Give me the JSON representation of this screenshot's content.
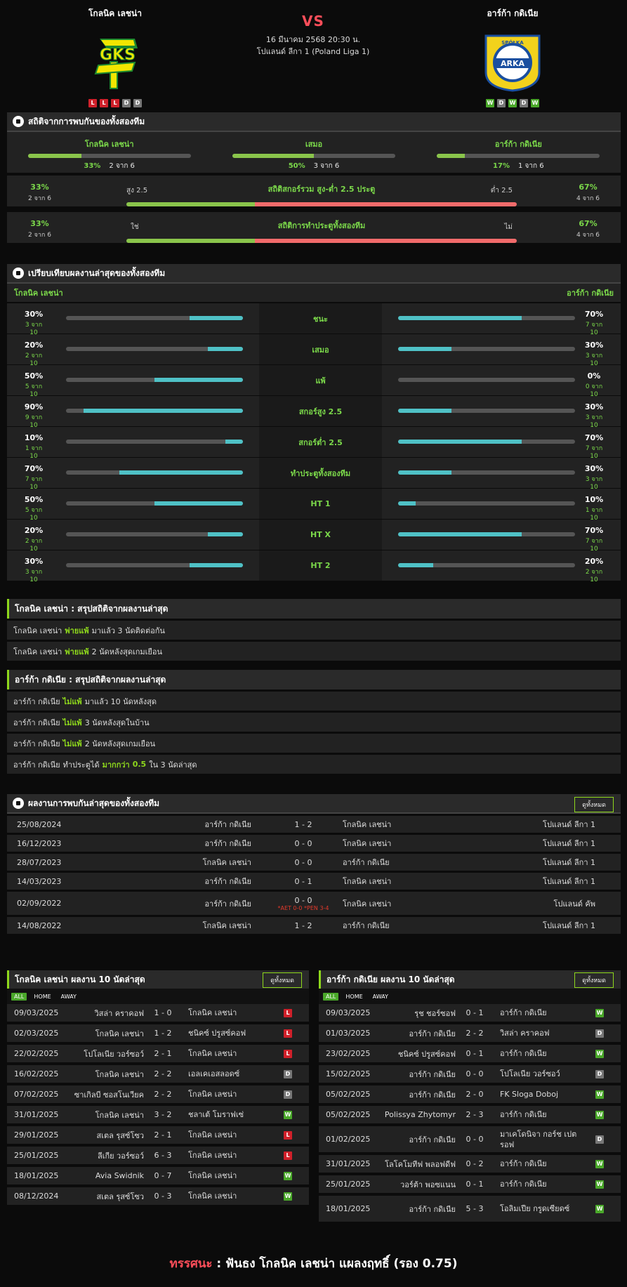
{
  "match": {
    "home": {
      "name": "โกลนิค เลชน่า",
      "form": [
        "L",
        "L",
        "L",
        "D",
        "D"
      ]
    },
    "away": {
      "name": "อาร์ก้า กดิเนีย",
      "form": [
        "W",
        "D",
        "W",
        "D",
        "W"
      ]
    },
    "vs": "VS",
    "datetime": "16 มีนาคม 2568 20:30 น.",
    "league": "โปแลนด์ ลีกา 1 (Poland Liga 1)"
  },
  "colors": {
    "accent": "#8ed81c",
    "red": "#ff4e5a",
    "bar_cyan": "#4fc1c6",
    "bar_green": "#8ac54b",
    "bar_red": "#f26b6b"
  },
  "h2h_stats": {
    "title": "สถิติจากการพบกันของทั้งสองทีม",
    "cols": [
      {
        "label": "โกลนิค เลชน่า",
        "pct": "33%",
        "count": "2 จาก 6",
        "fill": 33
      },
      {
        "label": "เสมอ",
        "pct": "50%",
        "count": "3 จาก 6",
        "fill": 50
      },
      {
        "label": "อาร์ก้า กดิเนีย",
        "pct": "17%",
        "count": "1 จาก 6",
        "fill": 17
      }
    ],
    "ou": {
      "title": "สถิติสกอร์รวม สูง-ต่ำ 2.5 ประตู",
      "left_label": "สูง 2.5",
      "right_label": "ต่ำ 2.5",
      "left_pct": "33%",
      "left_count": "2 จาก 6",
      "right_pct": "67%",
      "right_count": "4 จาก 6",
      "fill": 33
    },
    "btts": {
      "title": "สถิติการทำประตูทั้งสองทีม",
      "left_label": "ใช่",
      "right_label": "ไม่",
      "left_pct": "33%",
      "left_count": "2 จาก 6",
      "right_pct": "67%",
      "right_count": "4 จาก 6",
      "fill": 33
    }
  },
  "compare": {
    "title": "เปรียบเทียบผลงานล่าสุดของทั้งสองทีม",
    "home": "โกลนิค เลชน่า",
    "away": "อาร์ก้า กดิเนีย",
    "rows": [
      {
        "label": "ชนะ",
        "lp": "30%",
        "ls": "3 จาก 10",
        "lf": 30,
        "rp": "70%",
        "rs": "7 จาก 10",
        "rf": 70
      },
      {
        "label": "เสมอ",
        "lp": "20%",
        "ls": "2 จาก 10",
        "lf": 20,
        "rp": "30%",
        "rs": "3 จาก 10",
        "rf": 30
      },
      {
        "label": "แพ้",
        "lp": "50%",
        "ls": "5 จาก 10",
        "lf": 50,
        "rp": "0%",
        "rs": "0 จาก 10",
        "rf": 0
      },
      {
        "label": "สกอร์สูง 2.5",
        "lp": "90%",
        "ls": "9 จาก 10",
        "lf": 90,
        "rp": "30%",
        "rs": "3 จาก 10",
        "rf": 30
      },
      {
        "label": "สกอร์ต่ำ 2.5",
        "lp": "10%",
        "ls": "1 จาก 10",
        "lf": 10,
        "rp": "70%",
        "rs": "7 จาก 10",
        "rf": 70
      },
      {
        "label": "ทำประตูทั้งสองทีม",
        "lp": "70%",
        "ls": "7 จาก 10",
        "lf": 70,
        "rp": "30%",
        "rs": "3 จาก 10",
        "rf": 30
      },
      {
        "label": "HT 1",
        "lp": "50%",
        "ls": "5 จาก 10",
        "lf": 50,
        "rp": "10%",
        "rs": "1 จาก 10",
        "rf": 10
      },
      {
        "label": "HT X",
        "lp": "20%",
        "ls": "2 จาก 10",
        "lf": 20,
        "rp": "70%",
        "rs": "7 จาก 10",
        "rf": 70
      },
      {
        "label": "HT 2",
        "lp": "30%",
        "ls": "3 จาก 10",
        "lf": 30,
        "rp": "20%",
        "rs": "2 จาก 10",
        "rf": 20
      }
    ]
  },
  "summary_home": {
    "title": "โกลนิค เลชน่า : สรุปสถิติจากผลงานล่าสุด",
    "rows": [
      {
        "team": "โกลนิค เลชน่า",
        "hl": "พ่ายแพ้",
        "rest": "มาแล้ว 3 นัดติดต่อกัน"
      },
      {
        "team": "โกลนิค เลชน่า",
        "hl": "พ่ายแพ้",
        "rest": "2  นัดหลังสุดเกมเยือน"
      }
    ]
  },
  "summary_away": {
    "title": "อาร์ก้า กดิเนีย : สรุปสถิติจากผลงานล่าสุด",
    "rows": [
      {
        "team": "อาร์ก้า กดิเนีย",
        "hl": "ไม่แพ้",
        "rest": "มาแล้ว 10 นัดหลังสุด"
      },
      {
        "team": "อาร์ก้า กดิเนีย",
        "hl": "ไม่แพ้",
        "rest": "3  นัดหลังสุดในบ้าน"
      },
      {
        "team": "อาร์ก้า กดิเนีย",
        "hl": "ไม่แพ้",
        "rest": "2  นัดหลังสุดเกมเยือน"
      },
      {
        "team": "อาร์ก้า กดิเนีย",
        "hl": "",
        "rest": "ทำประตูได้",
        "hl2": "มากกว่า",
        "num": "0.5",
        "tail": "ใน 3 นัดล่าสุด"
      }
    ]
  },
  "h2h_results": {
    "title": "ผลงานการพบกันล่าสุดของทั้งสองทีม",
    "btn": "ดูทั้งหมด",
    "rows": [
      {
        "date": "25/08/2024",
        "home": "อาร์ก้า กดิเนีย",
        "score": "1 - 2",
        "away": "โกลนิค เลชน่า",
        "comp": "โปแลนด์ ลีกา 1"
      },
      {
        "date": "16/12/2023",
        "home": "อาร์ก้า กดิเนีย",
        "score": "0 - 0",
        "away": "โกลนิค เลชน่า",
        "comp": "โปแลนด์ ลีกา 1"
      },
      {
        "date": "28/07/2023",
        "home": "โกลนิค เลชน่า",
        "score": "0 - 0",
        "away": "อาร์ก้า กดิเนีย",
        "comp": "โปแลนด์ ลีกา 1"
      },
      {
        "date": "14/03/2023",
        "home": "อาร์ก้า กดิเนีย",
        "score": "0 - 1",
        "away": "โกลนิค เลชน่า",
        "comp": "โปแลนด์ ลีกา 1"
      },
      {
        "date": "02/09/2022",
        "home": "อาร์ก้า กดิเนีย",
        "score": "0 - 0",
        "note": "*AET 0-0 *PEN 3-4",
        "away": "โกลนิค เลชน่า",
        "comp": "โปแลนด์ คัพ"
      },
      {
        "date": "14/08/2022",
        "home": "โกลนิค เลชน่า",
        "score": "1 - 2",
        "away": "อาร์ก้า กดิเนีย",
        "comp": "โปแลนด์ ลีกา 1"
      }
    ]
  },
  "last10_home": {
    "title": "โกลนิค เลชน่า ผลงาน 10 นัดล่าสุด",
    "btn": "ดูทั้งหมด",
    "tabs": [
      "ALL",
      "HOME",
      "AWAY"
    ],
    "rows": [
      {
        "date": "09/03/2025",
        "home": "วิสล่า คราคอฟ",
        "score": "1 - 0",
        "away": "โกลนิค เลชน่า",
        "r": "L"
      },
      {
        "date": "02/03/2025",
        "home": "โกลนิค เลชน่า",
        "score": "1 - 2",
        "away": "ชนิคซ์ ปรูสซ์คอฟ",
        "r": "L"
      },
      {
        "date": "22/02/2025",
        "home": "โปโลเนีย วอร์ซอว์",
        "score": "2 - 1",
        "away": "โกลนิค เลชน่า",
        "r": "L"
      },
      {
        "date": "16/02/2025",
        "home": "โกลนิค เลชน่า",
        "score": "2 - 2",
        "away": "เอลเคเอสลอดซ์",
        "r": "D"
      },
      {
        "date": "07/02/2025",
        "home": "ซาเกิลบี ซอสโนเวียค",
        "score": "2 - 2",
        "away": "โกลนิค เลชน่า",
        "r": "D"
      },
      {
        "date": "31/01/2025",
        "home": "โกลนิค เลชน่า",
        "score": "3 - 2",
        "away": "ชลาเต้ โมราฟเซ่",
        "r": "W"
      },
      {
        "date": "29/01/2025",
        "home": "สเตล รุสซ์โซว",
        "score": "2 - 1",
        "away": "โกลนิค เลชน่า",
        "r": "L"
      },
      {
        "date": "25/01/2025",
        "home": "ลีเกีย วอร์ซอว์",
        "score": "6 - 3",
        "away": "โกลนิค เลชน่า",
        "r": "L"
      },
      {
        "date": "18/01/2025",
        "home": "Avia Swidnik",
        "score": "0 - 7",
        "away": "โกลนิค เลชน่า",
        "r": "W"
      },
      {
        "date": "08/12/2024",
        "home": "สเตล รุสซ์โซว",
        "score": "0 - 3",
        "away": "โกลนิค เลชน่า",
        "r": "W"
      }
    ]
  },
  "last10_away": {
    "title": "อาร์ก้า กดิเนีย ผลงาน 10 นัดล่าสุด",
    "btn": "ดูทั้งหมด",
    "tabs": [
      "ALL",
      "HOME",
      "AWAY"
    ],
    "rows": [
      {
        "date": "09/03/2025",
        "home": "รุช ชอร์ซอฟ",
        "score": "0 - 1",
        "away": "อาร์ก้า กดิเนีย",
        "r": "W"
      },
      {
        "date": "01/03/2025",
        "home": "อาร์ก้า กดิเนีย",
        "score": "2 - 2",
        "away": "วิสล่า คราคอฟ",
        "r": "D"
      },
      {
        "date": "23/02/2025",
        "home": "ชนิคซ์ ปรูสซ์คอฟ",
        "score": "0 - 1",
        "away": "อาร์ก้า กดิเนีย",
        "r": "W"
      },
      {
        "date": "15/02/2025",
        "home": "อาร์ก้า กดิเนีย",
        "score": "0 - 0",
        "away": "โปโลเนีย วอร์ซอว์",
        "r": "D"
      },
      {
        "date": "05/02/2025",
        "home": "อาร์ก้า กดิเนีย",
        "score": "2 - 0",
        "away": "FK Sloga Doboj",
        "r": "W"
      },
      {
        "date": "05/02/2025",
        "home": "Polissya Zhytomyr",
        "score": "2 - 3",
        "away": "อาร์ก้า กดิเนีย",
        "r": "W"
      },
      {
        "date": "01/02/2025",
        "home": "อาร์ก้า กดิเนีย",
        "score": "0 - 0",
        "away": "มาเคโดนิจา กอร์ช เปตรอฟ",
        "r": "D"
      },
      {
        "date": "31/01/2025",
        "home": "โลโคโมทีฟ พลอฟดีฟ",
        "score": "0 - 2",
        "away": "อาร์ก้า กดิเนีย",
        "r": "W"
      },
      {
        "date": "25/01/2025",
        "home": "วอร์ต้า พอซแนน",
        "score": "0 - 1",
        "away": "อาร์ก้า กดิเนีย",
        "r": "W"
      },
      {
        "date": "18/01/2025",
        "home": "อาร์ก้า กดิเนีย",
        "score": "5 - 3",
        "away": "โอลิมเปีย กรูดเซียดซ์",
        "r": "W"
      }
    ]
  },
  "verdict": {
    "label": "ทรรศนะ",
    "sep": ":",
    "text": "ฟันธง โกลนิค เลชน่า แผลงฤทธิ์ (รอง 0.75)"
  }
}
